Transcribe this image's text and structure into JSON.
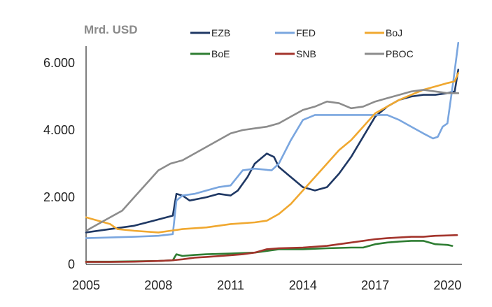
{
  "chart_data": {
    "type": "line",
    "unit_label": "Mrd. USD",
    "xlim": [
      2005,
      2020.6
    ],
    "ylim": [
      0,
      6500
    ],
    "x_ticks": [
      {
        "value": 2005,
        "label": "2005"
      },
      {
        "value": 2008,
        "label": "2008"
      },
      {
        "value": 2011,
        "label": "2011"
      },
      {
        "value": 2014,
        "label": "2014"
      },
      {
        "value": 2017,
        "label": "2017"
      },
      {
        "value": 2020,
        "label": "2020"
      }
    ],
    "y_ticks": [
      {
        "value": 0,
        "label": "0"
      },
      {
        "value": 2000,
        "label": "2.000"
      },
      {
        "value": 4000,
        "label": "4.000"
      },
      {
        "value": 6000,
        "label": "6.000"
      }
    ],
    "legend": "top",
    "grid": false,
    "series": [
      {
        "name": "EZB",
        "color": "#1f3864",
        "points": [
          [
            2005,
            950
          ],
          [
            2006,
            1050
          ],
          [
            2007,
            1150
          ],
          [
            2007.8,
            1300
          ],
          [
            2008.6,
            1450
          ],
          [
            2008.75,
            2100
          ],
          [
            2009,
            2050
          ],
          [
            2009.3,
            1900
          ],
          [
            2010,
            2000
          ],
          [
            2010.5,
            2100
          ],
          [
            2011,
            2050
          ],
          [
            2011.3,
            2200
          ],
          [
            2011.7,
            2600
          ],
          [
            2012,
            3000
          ],
          [
            2012.5,
            3300
          ],
          [
            2012.8,
            3200
          ],
          [
            2013,
            2900
          ],
          [
            2013.5,
            2600
          ],
          [
            2014,
            2300
          ],
          [
            2014.5,
            2200
          ],
          [
            2015,
            2300
          ],
          [
            2015.5,
            2700
          ],
          [
            2016,
            3200
          ],
          [
            2016.5,
            3800
          ],
          [
            2017,
            4400
          ],
          [
            2017.5,
            4700
          ],
          [
            2018,
            4900
          ],
          [
            2018.5,
            5000
          ],
          [
            2019,
            5050
          ],
          [
            2019.5,
            5050
          ],
          [
            2020,
            5100
          ],
          [
            2020.3,
            5150
          ],
          [
            2020.45,
            5800
          ]
        ]
      },
      {
        "name": "FED",
        "color": "#7aa6df",
        "points": [
          [
            2005,
            780
          ],
          [
            2006,
            800
          ],
          [
            2007,
            820
          ],
          [
            2008,
            850
          ],
          [
            2008.6,
            900
          ],
          [
            2008.75,
            1900
          ],
          [
            2009,
            2050
          ],
          [
            2009.5,
            2100
          ],
          [
            2010,
            2200
          ],
          [
            2010.5,
            2300
          ],
          [
            2011,
            2350
          ],
          [
            2011.5,
            2800
          ],
          [
            2012,
            2850
          ],
          [
            2012.7,
            2800
          ],
          [
            2013,
            3000
          ],
          [
            2013.5,
            3700
          ],
          [
            2014,
            4300
          ],
          [
            2014.5,
            4450
          ],
          [
            2015,
            4450
          ],
          [
            2016,
            4450
          ],
          [
            2017,
            4450
          ],
          [
            2017.5,
            4450
          ],
          [
            2018,
            4300
          ],
          [
            2018.5,
            4100
          ],
          [
            2019,
            3900
          ],
          [
            2019.4,
            3750
          ],
          [
            2019.6,
            3800
          ],
          [
            2019.8,
            4100
          ],
          [
            2020,
            4200
          ],
          [
            2020.25,
            5500
          ],
          [
            2020.45,
            6600
          ]
        ]
      },
      {
        "name": "BoJ",
        "color": "#f0a830",
        "points": [
          [
            2005,
            1400
          ],
          [
            2005.5,
            1300
          ],
          [
            2006,
            1200
          ],
          [
            2006.3,
            1050
          ],
          [
            2007,
            1000
          ],
          [
            2008,
            950
          ],
          [
            2008.5,
            1000
          ],
          [
            2009,
            1050
          ],
          [
            2010,
            1100
          ],
          [
            2011,
            1200
          ],
          [
            2012,
            1250
          ],
          [
            2012.5,
            1300
          ],
          [
            2013,
            1500
          ],
          [
            2013.5,
            1800
          ],
          [
            2014,
            2200
          ],
          [
            2014.5,
            2600
          ],
          [
            2015,
            3000
          ],
          [
            2015.5,
            3400
          ],
          [
            2016,
            3700
          ],
          [
            2016.5,
            4100
          ],
          [
            2017,
            4500
          ],
          [
            2017.5,
            4700
          ],
          [
            2018,
            4900
          ],
          [
            2018.5,
            5050
          ],
          [
            2019,
            5200
          ],
          [
            2019.5,
            5300
          ],
          [
            2020,
            5400
          ],
          [
            2020.3,
            5450
          ],
          [
            2020.45,
            5700
          ]
        ]
      },
      {
        "name": "BoE",
        "color": "#2e7d32",
        "points": [
          [
            2005,
            80
          ],
          [
            2006,
            80
          ],
          [
            2007,
            90
          ],
          [
            2008,
            100
          ],
          [
            2008.6,
            120
          ],
          [
            2008.75,
            300
          ],
          [
            2009,
            250
          ],
          [
            2009.5,
            280
          ],
          [
            2010,
            300
          ],
          [
            2011,
            320
          ],
          [
            2012,
            350
          ],
          [
            2012.5,
            400
          ],
          [
            2013,
            450
          ],
          [
            2014,
            450
          ],
          [
            2015,
            480
          ],
          [
            2016,
            500
          ],
          [
            2016.5,
            500
          ],
          [
            2017,
            600
          ],
          [
            2017.5,
            650
          ],
          [
            2018,
            680
          ],
          [
            2018.5,
            700
          ],
          [
            2019,
            700
          ],
          [
            2019.5,
            600
          ],
          [
            2020,
            580
          ],
          [
            2020.2,
            550
          ]
        ]
      },
      {
        "name": "SNB",
        "color": "#a3342c",
        "points": [
          [
            2005,
            70
          ],
          [
            2006,
            70
          ],
          [
            2007,
            80
          ],
          [
            2008,
            100
          ],
          [
            2008.6,
            120
          ],
          [
            2009,
            150
          ],
          [
            2009.5,
            200
          ],
          [
            2010,
            220
          ],
          [
            2011,
            270
          ],
          [
            2011.5,
            300
          ],
          [
            2012,
            350
          ],
          [
            2012.5,
            450
          ],
          [
            2013,
            480
          ],
          [
            2014,
            500
          ],
          [
            2015,
            550
          ],
          [
            2015.5,
            600
          ],
          [
            2016,
            650
          ],
          [
            2016.5,
            700
          ],
          [
            2017,
            750
          ],
          [
            2017.5,
            780
          ],
          [
            2018,
            800
          ],
          [
            2018.5,
            820
          ],
          [
            2019,
            820
          ],
          [
            2019.5,
            850
          ],
          [
            2020,
            860
          ],
          [
            2020.4,
            870
          ]
        ]
      },
      {
        "name": "PBOC",
        "color": "#8c8c8c",
        "points": [
          [
            2005,
            1000
          ],
          [
            2005.5,
            1200
          ],
          [
            2006,
            1400
          ],
          [
            2006.5,
            1600
          ],
          [
            2007,
            2000
          ],
          [
            2007.5,
            2400
          ],
          [
            2008,
            2800
          ],
          [
            2008.5,
            3000
          ],
          [
            2009,
            3100
          ],
          [
            2009.5,
            3300
          ],
          [
            2010,
            3500
          ],
          [
            2010.5,
            3700
          ],
          [
            2011,
            3900
          ],
          [
            2011.5,
            4000
          ],
          [
            2012,
            4050
          ],
          [
            2012.5,
            4100
          ],
          [
            2013,
            4200
          ],
          [
            2013.5,
            4400
          ],
          [
            2014,
            4600
          ],
          [
            2014.5,
            4700
          ],
          [
            2015,
            4850
          ],
          [
            2015.5,
            4800
          ],
          [
            2016,
            4650
          ],
          [
            2016.5,
            4700
          ],
          [
            2017,
            4850
          ],
          [
            2017.5,
            4950
          ],
          [
            2018,
            5050
          ],
          [
            2018.5,
            5150
          ],
          [
            2019,
            5200
          ],
          [
            2019.5,
            5150
          ],
          [
            2020,
            5100
          ],
          [
            2020.45,
            5100
          ]
        ]
      }
    ]
  }
}
